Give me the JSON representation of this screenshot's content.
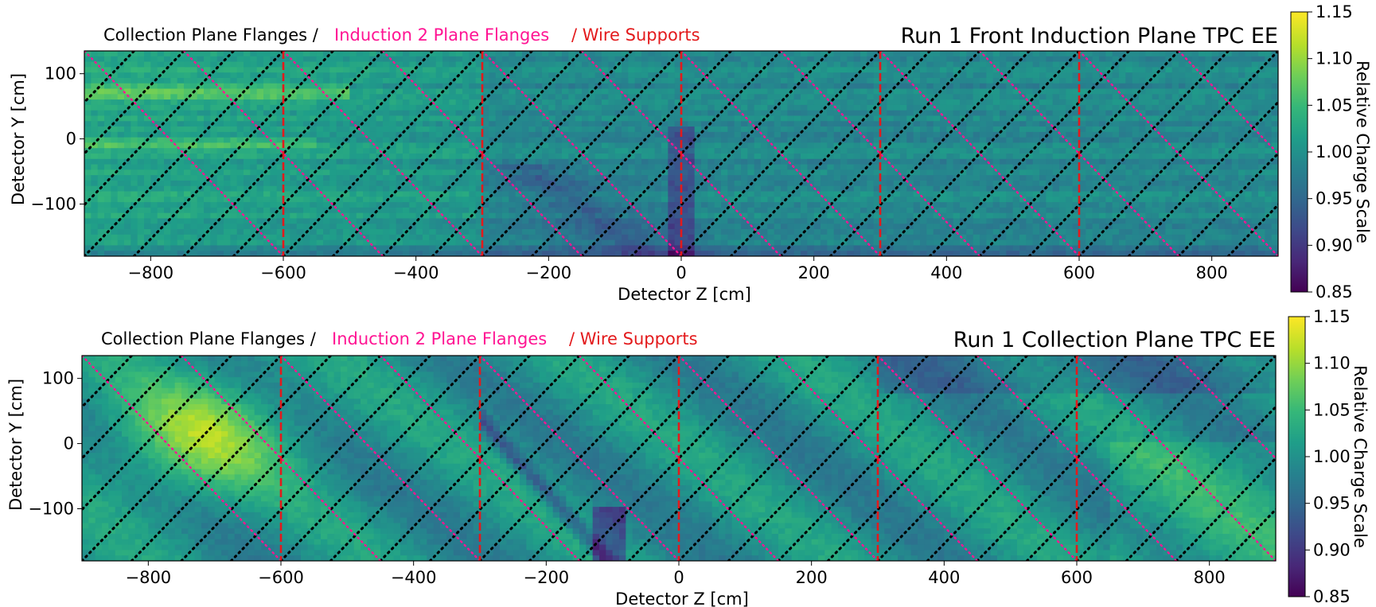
{
  "legend": {
    "collection": "Collection Plane Flanges /",
    "induction": "Induction 2 Plane Flanges",
    "wire": "/ Wire Supports"
  },
  "colors": {
    "collection_flange": "#000000",
    "induction_flange": "#ff1493",
    "wire_support": "#e31a1c",
    "colormap": [
      "#440154",
      "#482878",
      "#3e4989",
      "#31688e",
      "#26828e",
      "#1f9e89",
      "#35b779",
      "#6ece58",
      "#b5de2b",
      "#fde725"
    ]
  },
  "chart_data": [
    {
      "type": "heatmap",
      "title": "Run 1 Front Induction Plane TPC EE",
      "xlabel": "Detector Z [cm]",
      "ylabel": "Detector Y [cm]",
      "xlim": [
        -900,
        900
      ],
      "ylim": [
        -180,
        135
      ],
      "xticks": [
        -800,
        -600,
        -400,
        -200,
        0,
        200,
        400,
        600,
        800
      ],
      "yticks": [
        100,
        0,
        -100
      ],
      "colorbar": {
        "label": "Relative Charge Scale",
        "range": [
          0.85,
          1.15
        ],
        "ticks": [
          "1.15",
          "1.10",
          "1.05",
          "1.00",
          "0.95",
          "0.90",
          "0.85"
        ]
      },
      "grid": false,
      "wire_supports_z": [
        -600,
        -300,
        0,
        300,
        600
      ],
      "collection_flanges": {
        "direction": "rising",
        "spacing_z": 75
      },
      "induction_flanges": {
        "direction": "falling",
        "spacing_z": 150
      },
      "pattern": "horizontal"
    },
    {
      "type": "heatmap",
      "title": "Run 1 Collection Plane TPC EE",
      "xlabel": "Detector Z [cm]",
      "ylabel": "Detector Y [cm]",
      "xlim": [
        -900,
        900
      ],
      "ylim": [
        -180,
        135
      ],
      "xticks": [
        -800,
        -600,
        -400,
        -200,
        0,
        200,
        400,
        600,
        800
      ],
      "yticks": [
        100,
        0,
        -100
      ],
      "colorbar": {
        "label": "Relative Charge Scale",
        "range": [
          0.85,
          1.15
        ],
        "ticks": [
          "1.15",
          "1.10",
          "1.05",
          "1.00",
          "0.95",
          "0.90",
          "0.85"
        ]
      },
      "grid": false,
      "wire_supports_z": [
        -600,
        -300,
        0,
        300,
        600
      ],
      "collection_flanges": {
        "direction": "rising",
        "spacing_z": 75
      },
      "induction_flanges": {
        "direction": "falling",
        "spacing_z": 150
      },
      "pattern": "diagonal"
    }
  ]
}
